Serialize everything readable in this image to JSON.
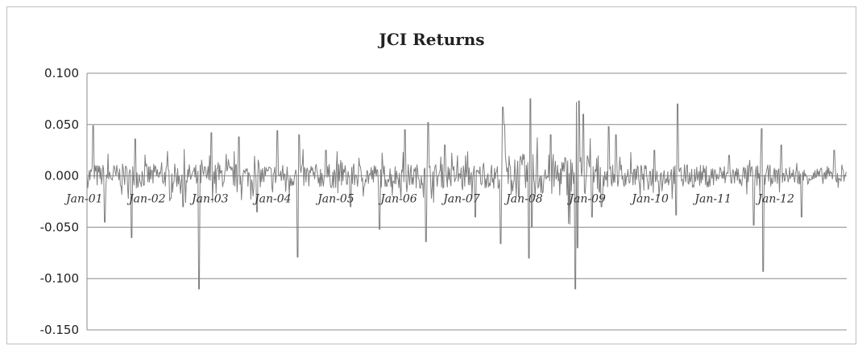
{
  "chart_data": {
    "type": "line",
    "title": "JCI Returns",
    "xlabel": "",
    "ylabel": "",
    "ylim": [
      -0.15,
      0.1
    ],
    "yticks": [
      "0.100",
      "0.050",
      "0.000",
      "-0.050",
      "-0.100",
      "-0.150"
    ],
    "ytick_values": [
      0.1,
      0.05,
      0.0,
      -0.05,
      -0.1,
      -0.15
    ],
    "xticks": [
      "Jan-01",
      "Jan-02",
      "Jan-03",
      "Jan-04",
      "Jan-05",
      "Jan-06",
      "Jan-07",
      "Jan-08",
      "Jan-09",
      "Jan-10",
      "Jan-11",
      "Jan-12"
    ],
    "x_range": [
      "2001-01-01",
      "2013-01-31"
    ],
    "grid": true,
    "legend": "none",
    "series": [
      {
        "color": "#7f7f7f",
        "note_values": "daily returns; notable extremes listed",
        "x": [
          "2001-01-01",
          "2001-02-05",
          "2001-04-15",
          "2001-09-17",
          "2001-10-08",
          "2002-07-15",
          "2002-10-14",
          "2002-12-23",
          "2003-06-02",
          "2003-09-15",
          "2004-01-12",
          "2004-05-10",
          "2004-05-17",
          "2004-10-18",
          "2005-03-14",
          "2005-08-29",
          "2006-01-23",
          "2006-05-22",
          "2006-06-05",
          "2006-09-11",
          "2007-03-05",
          "2007-07-30",
          "2007-08-13",
          "2007-08-20",
          "2008-01-14",
          "2008-01-21",
          "2008-01-28",
          "2008-05-19",
          "2008-10-06",
          "2008-10-08",
          "2008-10-13",
          "2008-10-20",
          "2008-10-28",
          "2008-11-24",
          "2009-01-12",
          "2009-03-09",
          "2009-04-20",
          "2009-06-01",
          "2010-01-11",
          "2010-05-17",
          "2010-05-24",
          "2011-03-21",
          "2011-08-08",
          "2011-09-26",
          "2011-10-03",
          "2012-01-16",
          "2012-05-14",
          "2012-11-19",
          "2013-01-28"
        ],
        "y": [
          0.0,
          0.049,
          -0.045,
          -0.06,
          0.036,
          -0.03,
          -0.11,
          0.042,
          0.038,
          -0.035,
          0.044,
          -0.079,
          0.04,
          0.025,
          -0.03,
          -0.052,
          0.045,
          -0.064,
          0.052,
          0.03,
          -0.04,
          -0.066,
          0.067,
          0.05,
          -0.08,
          0.075,
          -0.05,
          0.04,
          -0.11,
          0.065,
          0.072,
          -0.07,
          0.073,
          0.06,
          -0.04,
          -0.03,
          0.048,
          0.04,
          0.025,
          -0.038,
          0.07,
          0.02,
          -0.048,
          0.046,
          -0.093,
          0.03,
          -0.04,
          0.025,
          0.004
        ]
      }
    ]
  }
}
